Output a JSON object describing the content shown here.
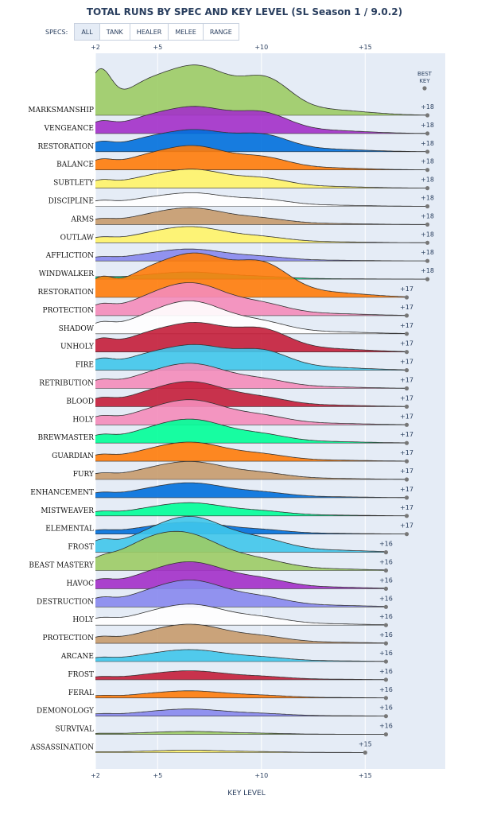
{
  "title": "TOTAL RUNS BY SPEC AND KEY LEVEL (SL Season 1 / 9.0.2)",
  "filter": {
    "label": "SPECS:",
    "buttons": [
      "ALL",
      "TANK",
      "HEALER",
      "MELEE",
      "RANGE"
    ],
    "active": "ALL"
  },
  "chart_data": {
    "type": "area",
    "subtype": "ridgeline",
    "xlabel": "KEY LEVEL",
    "xlim": [
      2,
      18
    ],
    "xticks": [
      2,
      5,
      10,
      15
    ],
    "xtick_labels": [
      "+2",
      "+5",
      "+10",
      "+15"
    ],
    "best_key_label": [
      "BEST",
      "KEY"
    ],
    "series": [
      {
        "name": "MARKSMANSHIP",
        "color": "#9ccc65",
        "best_key": "+18",
        "best_value": 18,
        "scale": 1.0,
        "profile": "hunter"
      },
      {
        "name": "VENGEANCE",
        "color": "#a330c9",
        "best_key": "+18",
        "best_value": 18,
        "scale": 0.55,
        "profile": "late"
      },
      {
        "name": "RESTORATION",
        "color": "#0070dd",
        "best_key": "+18",
        "best_value": 18,
        "scale": 0.45,
        "profile": "late"
      },
      {
        "name": "BALANCE",
        "color": "#ff7c0a",
        "best_key": "+18",
        "best_value": 18,
        "scale": 0.45,
        "profile": "even"
      },
      {
        "name": "SUBTLETY",
        "color": "#fff468",
        "best_key": "+18",
        "best_value": 18,
        "scale": 0.35,
        "profile": "even"
      },
      {
        "name": "DISCIPLINE",
        "color": "#ffffff",
        "best_key": "+18",
        "best_value": 18,
        "scale": 0.25,
        "profile": "even"
      },
      {
        "name": "ARMS",
        "color": "#c69b6d",
        "best_key": "+18",
        "best_value": 18,
        "scale": 0.28,
        "profile": "mid"
      },
      {
        "name": "OUTLAW",
        "color": "#fff468",
        "best_key": "+18",
        "best_value": 18,
        "scale": 0.27,
        "profile": "mid"
      },
      {
        "name": "AFFLICTION",
        "color": "#8788ee",
        "best_key": "+18",
        "best_value": 18,
        "scale": 0.2,
        "profile": "mid"
      },
      {
        "name": "WINDWALKER",
        "color": "#00ff98",
        "best_key": "+18",
        "best_value": 18,
        "scale": 0.12,
        "profile": "mid"
      },
      {
        "name": "RESTORATION",
        "color": "#ff7c0a",
        "best_key": "+17",
        "best_value": 17,
        "scale": 0.9,
        "profile": "late"
      },
      {
        "name": "PROTECTION",
        "color": "#f48cba",
        "best_key": "+17",
        "best_value": 17,
        "scale": 0.55,
        "profile": "mid"
      },
      {
        "name": "SHADOW",
        "color": "#ffffff",
        "best_key": "+17",
        "best_value": 17,
        "scale": 0.55,
        "profile": "mid"
      },
      {
        "name": "UNHOLY",
        "color": "#c41e3a",
        "best_key": "+17",
        "best_value": 17,
        "scale": 0.6,
        "profile": "late"
      },
      {
        "name": "FIRE",
        "color": "#3fc7eb",
        "best_key": "+17",
        "best_value": 17,
        "scale": 0.52,
        "profile": "late"
      },
      {
        "name": "RETRIBUTION",
        "color": "#f48cba",
        "best_key": "+17",
        "best_value": 17,
        "scale": 0.42,
        "profile": "mid"
      },
      {
        "name": "BLOOD",
        "color": "#c41e3a",
        "best_key": "+17",
        "best_value": 17,
        "scale": 0.42,
        "profile": "mid"
      },
      {
        "name": "HOLY",
        "color": "#f48cba",
        "best_key": "+17",
        "best_value": 17,
        "scale": 0.42,
        "profile": "mid"
      },
      {
        "name": "BREWMASTER",
        "color": "#00ff98",
        "best_key": "+17",
        "best_value": 17,
        "scale": 0.4,
        "profile": "mid"
      },
      {
        "name": "GUARDIAN",
        "color": "#ff7c0a",
        "best_key": "+17",
        "best_value": 17,
        "scale": 0.32,
        "profile": "mid"
      },
      {
        "name": "FURY",
        "color": "#c69b6d",
        "best_key": "+17",
        "best_value": 17,
        "scale": 0.3,
        "profile": "mid"
      },
      {
        "name": "ENHANCEMENT",
        "color": "#0070dd",
        "best_key": "+17",
        "best_value": 17,
        "scale": 0.25,
        "profile": "mid"
      },
      {
        "name": "MISTWEAVER",
        "color": "#00ff98",
        "best_key": "+17",
        "best_value": 17,
        "scale": 0.22,
        "profile": "mid"
      },
      {
        "name": "ELEMENTAL",
        "color": "#0070dd",
        "best_key": "+17",
        "best_value": 17,
        "scale": 0.2,
        "profile": "mid"
      },
      {
        "name": "FROST",
        "color": "#3fc7eb",
        "best_key": "+16",
        "best_value": 16,
        "scale": 0.6,
        "profile": "mid"
      },
      {
        "name": "BEAST MASTERY",
        "color": "#9ccc65",
        "best_key": "+16",
        "best_value": 16,
        "scale": 0.6,
        "profile": "early"
      },
      {
        "name": "HAVOC",
        "color": "#a330c9",
        "best_key": "+16",
        "best_value": 16,
        "scale": 0.45,
        "profile": "mid"
      },
      {
        "name": "DESTRUCTION",
        "color": "#8788ee",
        "best_key": "+16",
        "best_value": 16,
        "scale": 0.45,
        "profile": "mid"
      },
      {
        "name": "HOLY",
        "color": "#ffffff",
        "best_key": "+16",
        "best_value": 16,
        "scale": 0.35,
        "profile": "mid"
      },
      {
        "name": "PROTECTION",
        "color": "#c69b6d",
        "best_key": "+16",
        "best_value": 16,
        "scale": 0.32,
        "profile": "mid"
      },
      {
        "name": "ARCANE",
        "color": "#3fc7eb",
        "best_key": "+16",
        "best_value": 16,
        "scale": 0.2,
        "profile": "mid"
      },
      {
        "name": "FROST",
        "color": "#c41e3a",
        "best_key": "+16",
        "best_value": 16,
        "scale": 0.15,
        "profile": "mid"
      },
      {
        "name": "FERAL",
        "color": "#ff7c0a",
        "best_key": "+16",
        "best_value": 16,
        "scale": 0.12,
        "profile": "mid"
      },
      {
        "name": "DEMONOLOGY",
        "color": "#8788ee",
        "best_key": "+16",
        "best_value": 16,
        "scale": 0.12,
        "profile": "mid"
      },
      {
        "name": "SURVIVAL",
        "color": "#9ccc65",
        "best_key": "+16",
        "best_value": 16,
        "scale": 0.05,
        "profile": "mid"
      },
      {
        "name": "ASSASSINATION",
        "color": "#fff468",
        "best_key": "+15",
        "best_value": 15,
        "scale": 0.04,
        "profile": "mid"
      }
    ]
  }
}
